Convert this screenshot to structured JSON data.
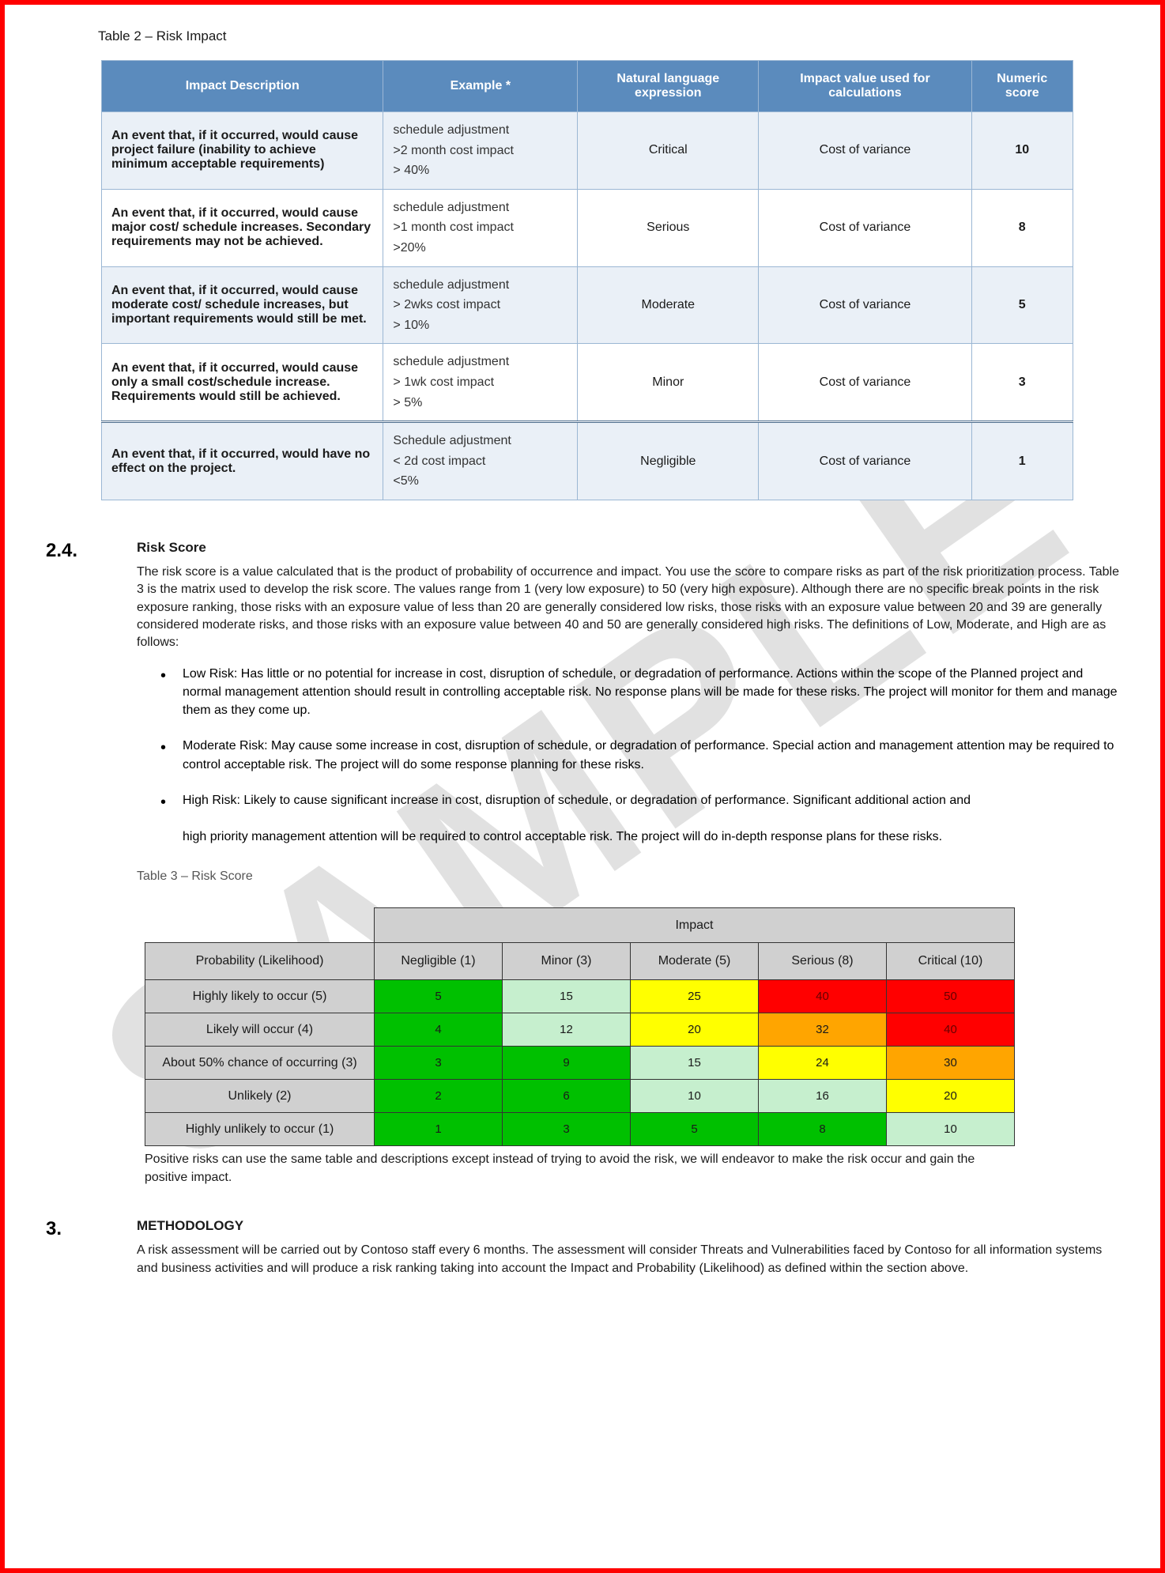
{
  "watermark": "SAMPLE",
  "table2": {
    "caption": "Table 2 – Risk Impact",
    "headers": [
      "Impact Description",
      "Example *",
      "Natural language expression",
      "Impact value used for calculations",
      "Numeric score"
    ],
    "rows": [
      {
        "desc": "An event that, if it occurred, would cause project failure (inability to achieve minimum acceptable requirements)",
        "example": "schedule adjustment\n>2 month cost impact\n> 40%",
        "expr": "Critical",
        "impact": "Cost of variance",
        "score": "10",
        "shade": "a"
      },
      {
        "desc": "An event that, if it occurred, would cause major cost/ schedule increases. Secondary requirements may not be achieved.",
        "example": "schedule adjustment\n>1 month cost impact\n>20%",
        "expr": "Serious",
        "impact": "Cost of variance",
        "score": "8",
        "shade": "b"
      },
      {
        "desc": "An event that, if it occurred, would cause moderate cost/ schedule increases, but important requirements would still be met.",
        "example": "schedule adjustment\n> 2wks cost impact\n> 10%",
        "expr": "Moderate",
        "impact": "Cost of variance",
        "score": "5",
        "shade": "a"
      },
      {
        "desc": "An event that, if it occurred, would cause only a small cost/schedule increase. Requirements would still be achieved.",
        "example": "schedule adjustment\n> 1wk cost impact\n> 5%",
        "expr": "Minor",
        "impact": "Cost of variance",
        "score": "3",
        "shade": "b"
      },
      {
        "desc": "An event that, if it occurred, would have no effect on the project.",
        "example": "Schedule adjustment\n< 2d cost impact\n<5%",
        "expr": "Negligible",
        "impact": "Cost of variance",
        "score": "1",
        "shade": "a",
        "doubleTop": true
      }
    ]
  },
  "section24": {
    "num": "2.4.",
    "title": "Risk Score",
    "para": "The risk score is a value calculated that is the product of probability of occurrence and impact. You use the score to compare risks as part of the risk prioritization process. Table 3 is the matrix used to develop the risk score. The values range from 1 (very low exposure) to 50 (very high exposure). Although there are no specific break points in the risk exposure ranking, those risks with an exposure value of less than 20 are generally considered low risks, those risks with an exposure value between 20 and 39 are generally considered moderate risks, and those risks with an exposure value between 40 and 50 are generally considered high risks. The definitions of Low, Moderate, and High are as follows:",
    "bullets": [
      "Low Risk: Has little or no potential for increase in cost, disruption of schedule, or degradation of performance. Actions within the scope of the Planned project and normal management attention should result in controlling acceptable risk. No response plans will be made for these risks. The project will monitor for them and manage them as they come up.",
      "Moderate Risk: May cause some increase in cost, disruption of schedule, or degradation of performance. Special action and management attention may be required to control acceptable risk. The project will do some response planning for these risks.",
      "High Risk: Likely to cause significant increase in cost, disruption of schedule, or degradation of performance. Significant additional action and\nhigh priority management attention will be required to control acceptable risk. The project will do in-depth response plans for these risks."
    ]
  },
  "table3": {
    "caption": "Table 3 – Risk Score",
    "impactLabel": "Impact",
    "colHeaders": [
      "Probability (Likelihood)",
      "Negligible (1)",
      "Minor (3)",
      "Moderate (5)",
      "Serious (8)",
      "Critical (10)"
    ],
    "colors": {
      "green": "#00c000",
      "lightgreen": "#c6efce",
      "yellow": "#ffff00",
      "orange": "#ffa500",
      "red": "#ff0000"
    },
    "rows": [
      {
        "label": "Highly likely to occur (5)",
        "cells": [
          {
            "v": "5",
            "c": "green"
          },
          {
            "v": "15",
            "c": "lightgreen"
          },
          {
            "v": "25",
            "c": "yellow"
          },
          {
            "v": "40",
            "c": "red"
          },
          {
            "v": "50",
            "c": "red"
          }
        ]
      },
      {
        "label": "Likely will occur (4)",
        "cells": [
          {
            "v": "4",
            "c": "green"
          },
          {
            "v": "12",
            "c": "lightgreen"
          },
          {
            "v": "20",
            "c": "yellow"
          },
          {
            "v": "32",
            "c": "orange"
          },
          {
            "v": "40",
            "c": "red"
          }
        ]
      },
      {
        "label": "About 50% chance of occurring (3)",
        "cells": [
          {
            "v": "3",
            "c": "green"
          },
          {
            "v": "9",
            "c": "green"
          },
          {
            "v": "15",
            "c": "lightgreen"
          },
          {
            "v": "24",
            "c": "yellow"
          },
          {
            "v": "30",
            "c": "orange"
          }
        ]
      },
      {
        "label": "Unlikely (2)",
        "cells": [
          {
            "v": "2",
            "c": "green"
          },
          {
            "v": "6",
            "c": "green"
          },
          {
            "v": "10",
            "c": "lightgreen"
          },
          {
            "v": "16",
            "c": "lightgreen"
          },
          {
            "v": "20",
            "c": "yellow"
          }
        ]
      },
      {
        "label": "Highly unlikely to occur (1)",
        "cells": [
          {
            "v": "1",
            "c": "green"
          },
          {
            "v": "3",
            "c": "green"
          },
          {
            "v": "5",
            "c": "green"
          },
          {
            "v": "8",
            "c": "green"
          },
          {
            "v": "10",
            "c": "lightgreen"
          }
        ]
      }
    ],
    "note": "Positive risks can use the same table and descriptions except instead of trying to avoid the risk, we will endeavor to make the risk occur and gain the positive impact."
  },
  "section3": {
    "num": "3.",
    "title": "METHODOLOGY",
    "para": "A risk assessment will be carried out by Contoso staff every 6 months.  The assessment will consider Threats and Vulnerabilities faced by Contoso for all information systems and business activities and will produce a risk ranking taking into account the Impact and Probability (Likelihood) as defined within the section above."
  }
}
